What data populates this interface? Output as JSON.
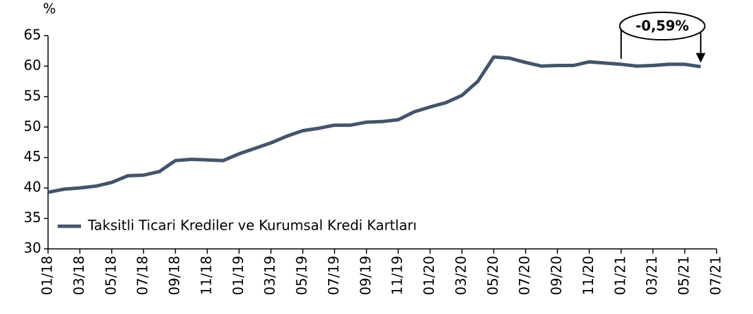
{
  "chart_data": {
    "type": "line",
    "y_label": "%",
    "annotation": "-0,59%",
    "categories": [
      "01/18",
      null,
      "03/18",
      null,
      "05/18",
      null,
      "07/18",
      null,
      "09/18",
      null,
      "11/18",
      null,
      "01/19",
      null,
      "03/19",
      null,
      "05/19",
      null,
      "07/19",
      null,
      "09/19",
      null,
      "11/19",
      null,
      "01/20",
      null,
      "03/20",
      null,
      "05/20",
      null,
      "07/20",
      null,
      "09/20",
      null,
      "11/20",
      null,
      "01/21",
      null,
      "03/21",
      null,
      "05/21",
      null,
      "07/21"
    ],
    "series": [
      {
        "name": "Taksitli Ticari Krediler ve Kurumsal Kredi Kartları",
        "color": "#44546a",
        "values": [
          39.3,
          39.8,
          40.0,
          40.3,
          40.9,
          42.0,
          42.1,
          42.7,
          44.5,
          44.7,
          44.6,
          44.5,
          45.6,
          46.5,
          47.4,
          48.5,
          49.4,
          49.8,
          50.3,
          50.3,
          50.8,
          50.9,
          51.2,
          52.5,
          53.3,
          54.0,
          55.2,
          57.5,
          61.5,
          61.3,
          60.6,
          60.0,
          60.1,
          60.1,
          60.7,
          60.5,
          60.3,
          60.0,
          60.1,
          60.3,
          60.3,
          59.9,
          null
        ]
      }
    ],
    "ylim": [
      30,
      65
    ],
    "yticks": [
      30,
      35,
      40,
      45,
      50,
      55,
      60,
      65
    ],
    "legend": "lower left"
  }
}
